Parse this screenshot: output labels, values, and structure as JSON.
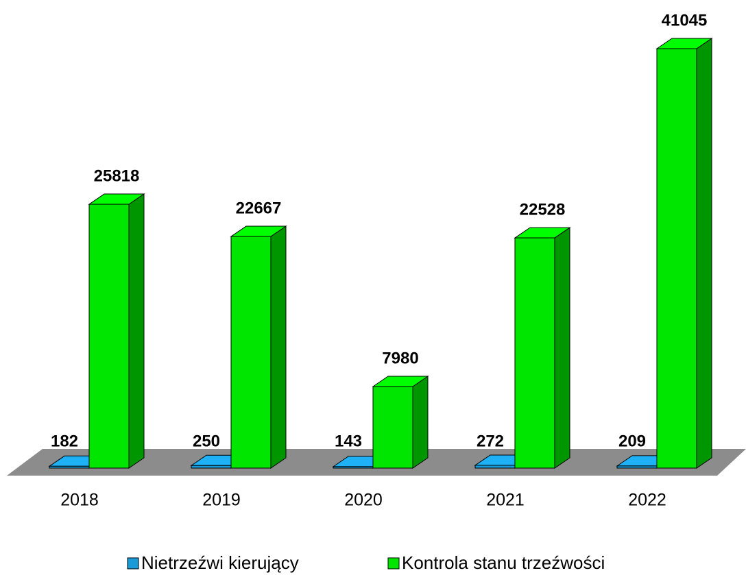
{
  "chart_data": {
    "type": "bar3d",
    "categories": [
      "2018",
      "2019",
      "2020",
      "2021",
      "2022"
    ],
    "series": [
      {
        "name": "Nietrzeźwi kierujący",
        "color": "#1a9ad6",
        "values": [
          182,
          250,
          143,
          272,
          209
        ]
      },
      {
        "name": "Kontrola stanu trzeźwości",
        "color": "#00e600",
        "values": [
          25818,
          22667,
          7980,
          22528,
          41045
        ]
      }
    ],
    "legend": "bottom"
  }
}
